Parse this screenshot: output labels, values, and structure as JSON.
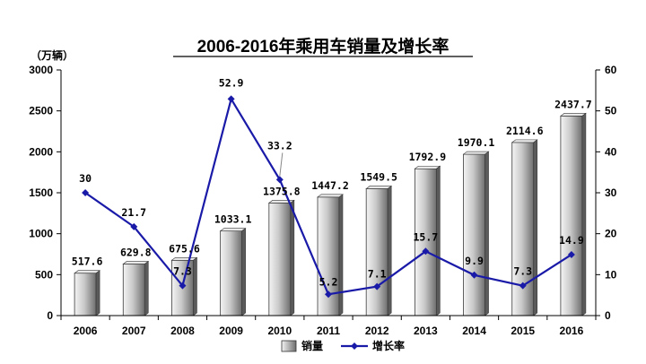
{
  "chart_data": {
    "type": "bar",
    "title": "2006-2016年乘用车销量及增长率",
    "unit_label": "（万辆）",
    "categories": [
      "2006",
      "2007",
      "2008",
      "2009",
      "2010",
      "2011",
      "2012",
      "2013",
      "2014",
      "2015",
      "2016"
    ],
    "series": [
      {
        "name": "销量",
        "type": "bar",
        "axis": "left",
        "values": [
          517.6,
          629.8,
          675.6,
          1033.1,
          1375.8,
          1447.2,
          1549.5,
          1792.9,
          1970.1,
          2114.6,
          2437.7
        ],
        "labels": [
          "517.6",
          "629.8",
          "675.6",
          "1033.1",
          "1375.8",
          "1447.2",
          "1549.5",
          "1792.9",
          "1970.1",
          "2114.6",
          "2437.7"
        ]
      },
      {
        "name": "增长率",
        "type": "line",
        "axis": "right",
        "values": [
          30,
          21.7,
          7.3,
          52.9,
          33.2,
          5.2,
          7.1,
          15.7,
          9.9,
          7.3,
          14.9
        ],
        "labels": [
          "30",
          "21.7",
          "7.3",
          "52.9",
          "33.2",
          "5.2",
          "7.1",
          "15.7",
          "9.9",
          "7.3",
          "14.9"
        ]
      }
    ],
    "y_left": {
      "min": 0,
      "max": 3000,
      "ticks": [
        "0",
        "500",
        "1000",
        "1500",
        "2000",
        "2500",
        "3000"
      ]
    },
    "y_right": {
      "min": 0,
      "max": 60,
      "ticks": [
        "0",
        "10",
        "20",
        "30",
        "40",
        "50",
        "60"
      ]
    },
    "legend_position": "bottom",
    "grid": false,
    "colors": {
      "line": "#1a1aa8",
      "bar_light": "#f4f4f4",
      "bar_dark": "#6e6e6e",
      "axis": "#000000"
    }
  }
}
